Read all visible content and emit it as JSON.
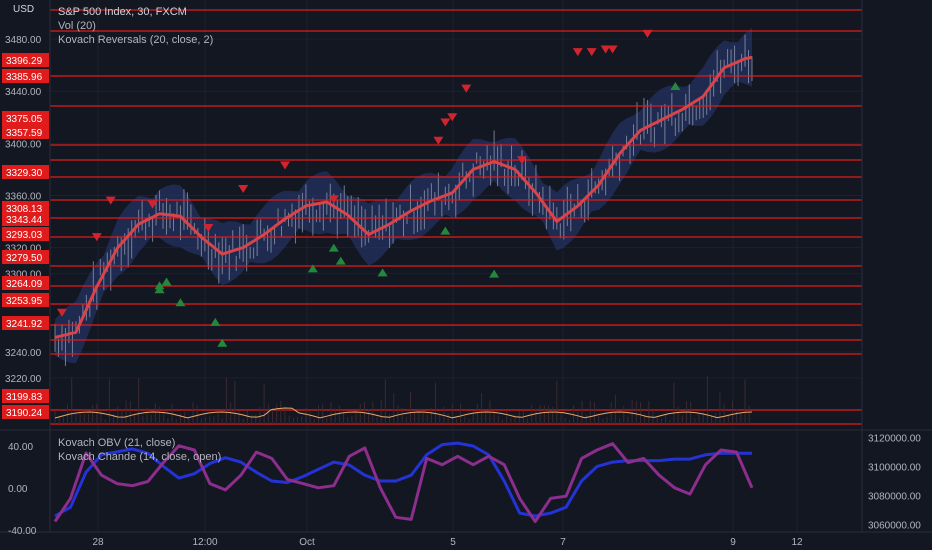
{
  "header": {
    "currency": "USD",
    "symbol_line": "S&P 500 Index, 30, FXCM",
    "indicators": [
      "Vol (20)",
      "Kovach Reversals (20, close, 2)"
    ]
  },
  "lower_header": {
    "indicators": [
      "Kovach OBV (21, close)",
      "Kovach Chande (14, close, open)"
    ]
  },
  "colors": {
    "background": "#131722",
    "level_line": "#e01b1b",
    "level_tag": "#e01b1b",
    "price_line": "#d9434a",
    "band_fill": "#2a3a78",
    "candles": "#8c95a8",
    "arrow_down": "#d1242f",
    "arrow_up": "#23883c",
    "volume_osc": "#e9a86a",
    "obv": "#2433d6",
    "chande": "#8c2e8c"
  },
  "chart_data": [
    {
      "type": "line",
      "name": "price",
      "title": "S&P 500 Index, 30, FXCM",
      "x_ticks": [
        "28",
        "12:00",
        "Oct",
        "5",
        "7",
        "9",
        "12"
      ],
      "y_ticks": [
        3480.0,
        3440.0,
        3400.0,
        3360.0,
        3320.0,
        3300.0,
        3260.0,
        3240.0,
        3220.0
      ],
      "y_tick_labels": [
        "3480.00",
        "3440.00",
        "3400.00",
        "3360.00",
        "3320.00",
        "3300.00",
        "3260.00",
        "3240.00",
        "3220.00"
      ],
      "ylim": [
        3180,
        3510
      ],
      "level_tags": [
        "3396.29",
        "3385.96",
        "3375.05",
        "3357.59",
        "3329.30",
        "3308.13",
        "3343.44",
        "3293.03",
        "3279.50",
        "3264.09",
        "3253.95",
        "3241.92",
        "3199.83",
        "3190.24"
      ],
      "current_price": "3396.29",
      "series": [
        {
          "x": [
            0,
            3,
            6,
            9,
            12,
            15,
            18,
            21,
            24,
            27,
            30,
            33,
            36,
            39,
            42,
            45,
            48,
            51,
            54,
            57,
            60,
            63,
            66,
            69,
            72,
            75,
            78,
            81,
            84,
            87,
            90,
            93,
            96,
            99,
            100
          ],
          "y": [
            3251,
            3255,
            3290,
            3320,
            3338,
            3346,
            3344,
            3328,
            3315,
            3320,
            3330,
            3342,
            3352,
            3355,
            3345,
            3330,
            3338,
            3348,
            3356,
            3362,
            3380,
            3386,
            3380,
            3362,
            3340,
            3352,
            3368,
            3392,
            3410,
            3418,
            3426,
            3436,
            3458,
            3465,
            3466
          ]
        }
      ],
      "reversal_arrows": {
        "down": [
          [
            1,
            3270
          ],
          [
            6,
            3328
          ],
          [
            8,
            3356
          ],
          [
            14,
            3353
          ],
          [
            22,
            3335
          ],
          [
            27,
            3365
          ],
          [
            33,
            3383
          ],
          [
            40,
            3357
          ],
          [
            55,
            3402
          ],
          [
            56,
            3416
          ],
          [
            57,
            3420
          ],
          [
            59,
            3442
          ],
          [
            67,
            3387
          ],
          [
            75,
            3470
          ],
          [
            77,
            3470
          ],
          [
            79,
            3472
          ],
          [
            80,
            3472
          ],
          [
            85,
            3484
          ]
        ],
        "up": [
          [
            15,
            3288
          ],
          [
            15,
            3291
          ],
          [
            16,
            3294
          ],
          [
            18,
            3278
          ],
          [
            23,
            3263
          ],
          [
            24,
            3247
          ],
          [
            37,
            3304
          ],
          [
            40,
            3320
          ],
          [
            41,
            3310
          ],
          [
            47,
            3301
          ],
          [
            56,
            3333
          ],
          [
            63,
            3300
          ],
          [
            89,
            3444
          ]
        ]
      }
    },
    {
      "type": "line",
      "name": "oscillator",
      "y_tick_labels": [
        "40.00",
        "0.00",
        "-40.00"
      ],
      "ylim": [
        -42,
        55
      ],
      "right_tick_labels": [
        "3120000.00",
        "3100000.00",
        "3080000.00",
        "3060000.00"
      ],
      "right_ylim": [
        3055000,
        3125000
      ],
      "series": [
        {
          "name": "Kovach OBV (21, close)",
          "x": [
            0,
            2,
            4,
            6,
            8,
            10,
            12,
            14,
            16,
            18,
            20,
            22,
            24,
            26,
            28,
            30,
            32,
            34,
            36,
            38,
            40,
            42,
            44,
            46,
            48,
            50,
            52,
            54,
            56,
            58,
            60,
            62,
            64,
            66,
            68,
            70,
            72,
            74,
            76,
            78,
            80,
            82,
            84,
            86,
            88,
            90
          ],
          "y": [
            3066000,
            3072000,
            3096000,
            3108000,
            3110000,
            3112000,
            3109000,
            3100000,
            3092000,
            3095000,
            3102000,
            3106000,
            3103000,
            3096000,
            3090000,
            3089000,
            3093000,
            3098000,
            3103000,
            3101000,
            3094000,
            3090000,
            3090000,
            3094000,
            3108000,
            3115000,
            3116000,
            3114000,
            3108000,
            3090000,
            3068000,
            3066000,
            3068000,
            3072000,
            3090000,
            3100000,
            3103000,
            3104000,
            3104000,
            3104000,
            3105000,
            3105000,
            3108000,
            3109000,
            3109000,
            3109000
          ]
        },
        {
          "name": "Kovach Chande (14, close, open)",
          "x": [
            0,
            2,
            4,
            6,
            8,
            10,
            12,
            14,
            16,
            18,
            20,
            22,
            24,
            26,
            28,
            30,
            32,
            34,
            36,
            38,
            40,
            42,
            44,
            46,
            48,
            50,
            52,
            54,
            56,
            58,
            60,
            62,
            64,
            66,
            68,
            70,
            72,
            74,
            76,
            78,
            80,
            82,
            84,
            86,
            88,
            90
          ],
          "y": [
            -32,
            -10,
            33,
            12,
            4,
            2,
            6,
            24,
            40,
            36,
            4,
            -2,
            12,
            34,
            28,
            8,
            4,
            0,
            2,
            30,
            38,
            0,
            -28,
            -30,
            28,
            22,
            30,
            22,
            30,
            22,
            -10,
            -32,
            -10,
            -8,
            28,
            36,
            42,
            24,
            28,
            12,
            0,
            -6,
            22,
            36,
            34,
            0
          ]
        }
      ]
    }
  ]
}
